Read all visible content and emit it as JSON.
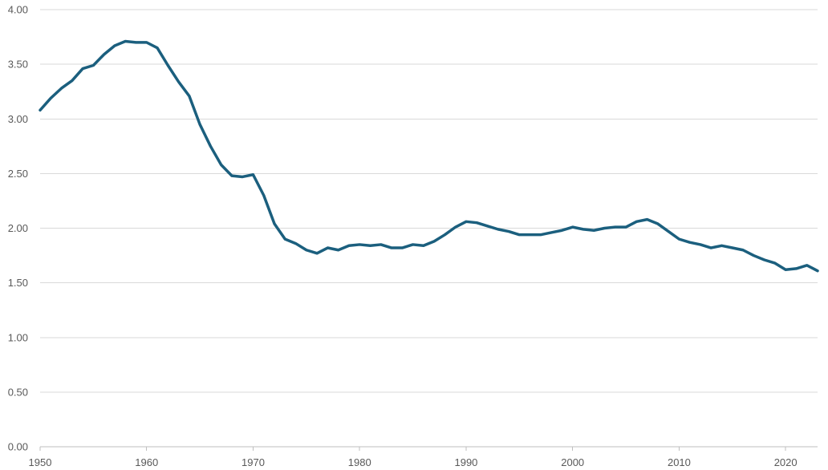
{
  "chart_data": {
    "type": "line",
    "title": "",
    "xlabel": "",
    "ylabel": "",
    "xlim": [
      1950,
      2023
    ],
    "ylim": [
      0,
      4
    ],
    "grid": true,
    "legend": "none",
    "y_ticks": [
      "0.00",
      "0.50",
      "1.00",
      "1.50",
      "2.00",
      "2.50",
      "3.00",
      "3.50",
      "4.00"
    ],
    "x_ticks": [
      "1950",
      "1960",
      "1970",
      "1980",
      "1990",
      "2000",
      "2010",
      "2020"
    ],
    "colors": {
      "line": "#1b5f7e",
      "grid": "#d9d9d9",
      "axis": "#bfbfbf",
      "text": "#595959"
    },
    "series": [
      {
        "x": [
          1950,
          1951,
          1952,
          1953,
          1954,
          1955,
          1956,
          1957,
          1958,
          1959,
          1960,
          1961,
          1962,
          1963,
          1964,
          1965,
          1966,
          1967,
          1968,
          1969,
          1970,
          1971,
          1972,
          1973,
          1974,
          1975,
          1976,
          1977,
          1978,
          1979,
          1980,
          1981,
          1982,
          1983,
          1984,
          1985,
          1986,
          1987,
          1988,
          1989,
          1990,
          1991,
          1992,
          1993,
          1994,
          1995,
          1996,
          1997,
          1998,
          1999,
          2000,
          2001,
          2002,
          2003,
          2004,
          2005,
          2006,
          2007,
          2008,
          2009,
          2010,
          2011,
          2012,
          2013,
          2014,
          2015,
          2016,
          2017,
          2018,
          2019,
          2020,
          2021,
          2022,
          2023
        ],
        "y": [
          3.08,
          3.19,
          3.28,
          3.35,
          3.46,
          3.49,
          3.59,
          3.67,
          3.71,
          3.7,
          3.7,
          3.65,
          3.49,
          3.34,
          3.21,
          2.95,
          2.75,
          2.58,
          2.48,
          2.47,
          2.49,
          2.3,
          2.04,
          1.9,
          1.86,
          1.8,
          1.77,
          1.82,
          1.8,
          1.84,
          1.85,
          1.84,
          1.85,
          1.82,
          1.82,
          1.85,
          1.84,
          1.88,
          1.94,
          2.01,
          2.06,
          2.05,
          2.02,
          1.99,
          1.97,
          1.94,
          1.94,
          1.94,
          1.96,
          1.98,
          2.01,
          1.99,
          1.98,
          2.0,
          2.01,
          2.01,
          2.06,
          2.08,
          2.04,
          1.97,
          1.9,
          1.87,
          1.85,
          1.82,
          1.84,
          1.82,
          1.8,
          1.75,
          1.71,
          1.68,
          1.62,
          1.63,
          1.66,
          1.61
        ]
      }
    ]
  }
}
